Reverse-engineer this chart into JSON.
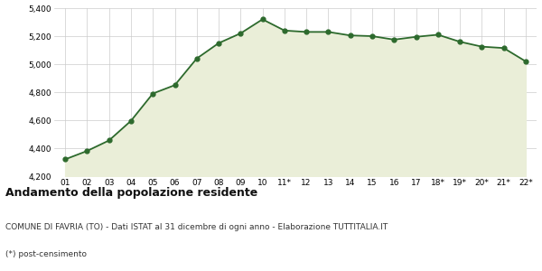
{
  "x_labels": [
    "01",
    "02",
    "03",
    "04",
    "05",
    "06",
    "07",
    "08",
    "09",
    "10",
    "11*",
    "12",
    "13",
    "14",
    "15",
    "16",
    "17",
    "18*",
    "19*",
    "20*",
    "21*",
    "22*"
  ],
  "y_values": [
    4320,
    4380,
    4455,
    4595,
    4790,
    4850,
    5040,
    5150,
    5220,
    5320,
    5240,
    5230,
    5230,
    5205,
    5200,
    5175,
    5195,
    5210,
    5160,
    5125,
    5115,
    5020
  ],
  "line_color": "#2d6a2d",
  "fill_color": "#eaeed8",
  "marker_color": "#2d6a2d",
  "bg_color": "#ffffff",
  "grid_color": "#cccccc",
  "ylim": [
    4200,
    5400
  ],
  "yticks": [
    4200,
    4400,
    4600,
    4800,
    5000,
    5200,
    5400
  ],
  "title": "Andamento della popolazione residente",
  "subtitle": "COMUNE DI FAVRIA (TO) - Dati ISTAT al 31 dicembre di ogni anno - Elaborazione TUTTITALIA.IT",
  "footnote": "(*) post-censimento",
  "title_fontsize": 9,
  "subtitle_fontsize": 6.5,
  "footnote_fontsize": 6.5
}
